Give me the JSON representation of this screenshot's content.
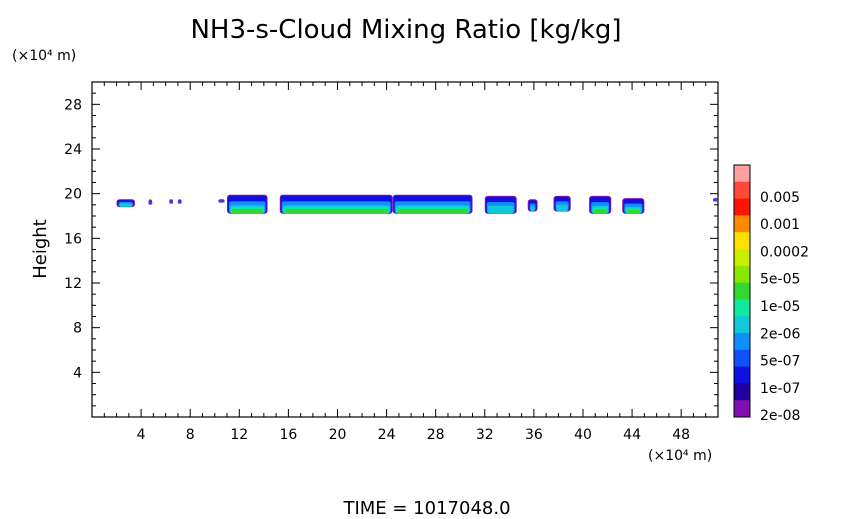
{
  "chart_data": {
    "type": "heatmap",
    "title": "NH3-s-Cloud Mixing Ratio [kg/kg]",
    "ylabel": "Height",
    "xlabel": "",
    "x_unit_label": "(×10⁴ m)",
    "y_unit_label": "(×10⁴ m)",
    "xlim": [
      0,
      51
    ],
    "ylim": [
      0,
      30
    ],
    "x_ticks": [
      4,
      8,
      12,
      16,
      20,
      24,
      28,
      32,
      36,
      40,
      44,
      48
    ],
    "y_ticks": [
      4,
      8,
      12,
      16,
      20,
      24,
      28
    ],
    "time_label": "TIME  =  1017048.0",
    "colorbar": {
      "labels": [
        "0.005",
        "0.001",
        "0.0002",
        "5e-05",
        "1e-05",
        "2e-06",
        "5e-07",
        "1e-07",
        "2e-08"
      ],
      "colors": [
        "#ff9f9f",
        "#ff4a3a",
        "#ff1400",
        "#ff8a00",
        "#ffe000",
        "#c8f000",
        "#8ae600",
        "#30d830",
        "#10e8a0",
        "#10c8d8",
        "#1090ff",
        "#1050ff",
        "#1010e0",
        "#2000a0",
        "#8010b0"
      ]
    },
    "cloud_segments": [
      {
        "x0": 2.0,
        "x1": 3.5,
        "y0": 18.8,
        "y1": 19.5,
        "core": false
      },
      {
        "x0": 4.6,
        "x1": 4.9,
        "y0": 19.0,
        "y1": 19.5,
        "core": false
      },
      {
        "x0": 6.3,
        "x1": 6.6,
        "y0": 19.1,
        "y1": 19.5,
        "core": false
      },
      {
        "x0": 7.0,
        "x1": 7.3,
        "y0": 19.1,
        "y1": 19.5,
        "core": false
      },
      {
        "x0": 10.3,
        "x1": 10.8,
        "y0": 19.2,
        "y1": 19.5,
        "core": false
      },
      {
        "x0": 11.0,
        "x1": 14.3,
        "y0": 18.2,
        "y1": 19.9,
        "core": true
      },
      {
        "x0": 15.3,
        "x1": 24.5,
        "y0": 18.2,
        "y1": 19.9,
        "core": true
      },
      {
        "x0": 24.5,
        "x1": 31.0,
        "y0": 18.2,
        "y1": 19.9,
        "core": true
      },
      {
        "x0": 32.0,
        "x1": 34.6,
        "y0": 18.2,
        "y1": 19.8,
        "core": false
      },
      {
        "x0": 35.5,
        "x1": 36.3,
        "y0": 18.4,
        "y1": 19.5,
        "core": false
      },
      {
        "x0": 37.6,
        "x1": 39.0,
        "y0": 18.4,
        "y1": 19.8,
        "core": false
      },
      {
        "x0": 40.5,
        "x1": 42.3,
        "y0": 18.2,
        "y1": 19.8,
        "core": true
      },
      {
        "x0": 43.2,
        "x1": 45.0,
        "y0": 18.2,
        "y1": 19.6,
        "core": true
      },
      {
        "x0": 50.6,
        "x1": 51.0,
        "y0": 19.3,
        "y1": 19.6,
        "core": false
      }
    ]
  }
}
